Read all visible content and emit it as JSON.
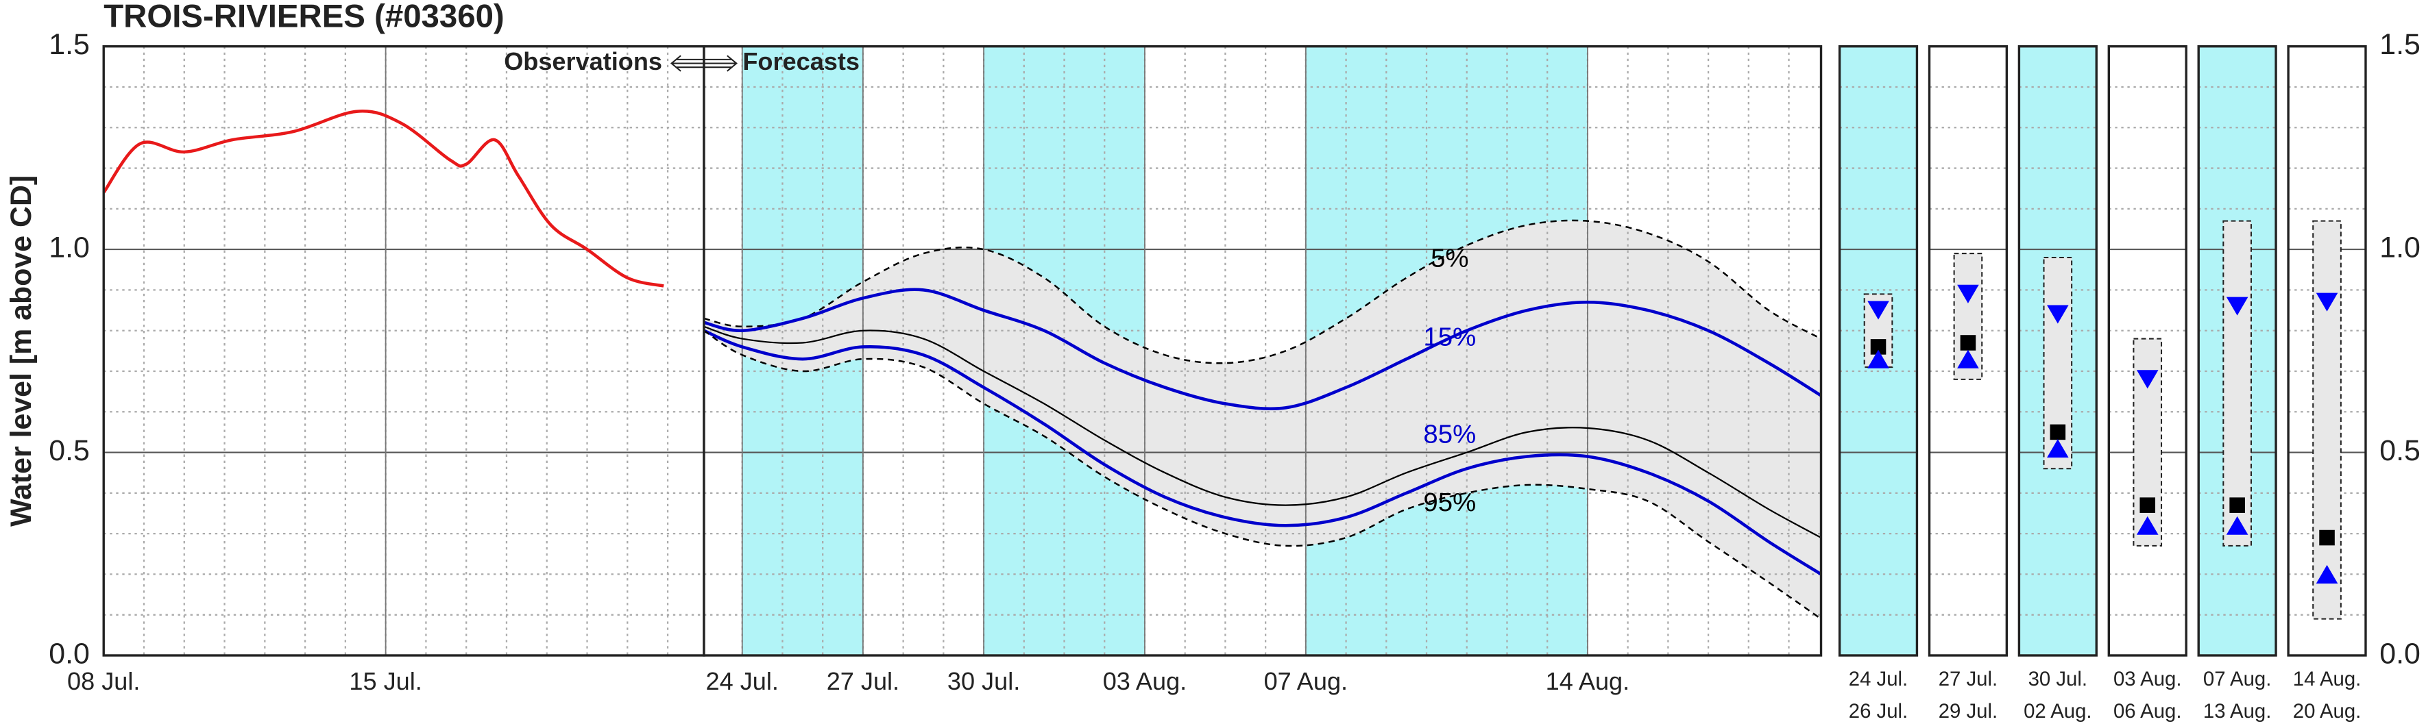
{
  "chart_data": [
    {
      "type": "line",
      "title": "TROIS-RIVIERES (#03360)",
      "y_label": "Water level [m above CD]",
      "x": [
        8,
        8.9,
        10,
        11.2,
        12.7,
        14.3,
        15.4,
        16.6,
        17,
        17.7,
        18.3,
        19.1,
        20,
        21,
        21.9
      ],
      "series": [
        {
          "color": "#e8191a",
          "values": [
            1.14,
            1.26,
            1.24,
            1.27,
            1.29,
            1.34,
            1.31,
            1.22,
            1.21,
            1.27,
            1.18,
            1.06,
            1.0,
            0.93,
            0.91
          ]
        }
      ],
      "xlim": [
        8,
        22.9
      ],
      "xticks": [
        {
          "value": 8,
          "label": "08 Jul."
        },
        {
          "value": 15,
          "label": "15 Jul."
        }
      ],
      "ylim": [
        0,
        1.5
      ],
      "yticks": [
        {
          "value": 0,
          "label": "0.0"
        },
        {
          "value": 0.5,
          "label": "0.5"
        },
        {
          "value": 1,
          "label": "1.0"
        },
        {
          "value": 1.5,
          "label": "1.5"
        }
      ],
      "grid": true
    },
    {
      "type": "band",
      "annotations": [
        "Observations",
        "Forecasts"
      ],
      "x": [
        23.05,
        24,
        25.5,
        27,
        28.5,
        30,
        31.5,
        33,
        34.5,
        36,
        37.5,
        39,
        40.5,
        42,
        43.5,
        45,
        46.5,
        48,
        49.5,
        50.8
      ],
      "series": [
        {
          "name": "5%",
          "color": "#000000",
          "dashed": true,
          "values": [
            0.83,
            0.81,
            0.83,
            0.92,
            0.99,
            1.0,
            0.93,
            0.81,
            0.74,
            0.72,
            0.75,
            0.83,
            0.93,
            1.01,
            1.06,
            1.07,
            1.04,
            0.97,
            0.85,
            0.78
          ]
        },
        {
          "name": "15%",
          "color": "#0000cc",
          "dashed": false,
          "values": [
            0.82,
            0.8,
            0.83,
            0.88,
            0.9,
            0.85,
            0.8,
            0.72,
            0.66,
            0.62,
            0.61,
            0.66,
            0.73,
            0.8,
            0.85,
            0.87,
            0.85,
            0.8,
            0.72,
            0.64
          ]
        },
        {
          "color": "#000000",
          "dashed": false,
          "values": [
            0.81,
            0.78,
            0.77,
            0.8,
            0.78,
            0.7,
            0.62,
            0.53,
            0.45,
            0.39,
            0.37,
            0.39,
            0.45,
            0.5,
            0.55,
            0.56,
            0.53,
            0.45,
            0.36,
            0.29
          ]
        },
        {
          "name": "85%",
          "color": "#0000cc",
          "dashed": false,
          "values": [
            0.8,
            0.76,
            0.73,
            0.76,
            0.74,
            0.66,
            0.57,
            0.47,
            0.39,
            0.34,
            0.32,
            0.34,
            0.4,
            0.46,
            0.49,
            0.49,
            0.45,
            0.38,
            0.28,
            0.2
          ]
        },
        {
          "name": "95%",
          "color": "#000000",
          "dashed": true,
          "values": [
            0.8,
            0.74,
            0.7,
            0.73,
            0.71,
            0.62,
            0.54,
            0.44,
            0.36,
            0.3,
            0.27,
            0.29,
            0.36,
            0.4,
            0.42,
            0.41,
            0.38,
            0.28,
            0.18,
            0.09
          ]
        }
      ],
      "fill_between": [
        0,
        4
      ],
      "fill_color": "#e8e8e8",
      "shaded_periods": [
        [
          24,
          27
        ],
        [
          30,
          34
        ],
        [
          38,
          45
        ]
      ],
      "band_color": "#b2f4f7",
      "xlim": [
        23.05,
        50.8
      ],
      "xticks": [
        {
          "value": 24,
          "label": "24 Jul."
        },
        {
          "value": 27,
          "label": "27 Jul."
        },
        {
          "value": 30,
          "label": "30 Jul."
        },
        {
          "value": 34,
          "label": "03 Aug."
        },
        {
          "value": 38,
          "label": "07 Aug."
        },
        {
          "value": 45,
          "label": "14 Aug."
        }
      ],
      "ylim": [
        0,
        1.5
      ],
      "yticks": [
        0,
        0.5,
        1,
        1.5
      ],
      "grid": true
    },
    {
      "type": "range",
      "categories": [
        [
          "24 Jul.",
          "26 Jul."
        ],
        [
          "27 Jul.",
          "29 Jul."
        ],
        [
          "30 Jul.",
          "02 Aug."
        ],
        [
          "03 Aug.",
          "06 Aug."
        ],
        [
          "07 Aug.",
          "13 Aug."
        ],
        [
          "14 Aug.",
          "20 Aug."
        ]
      ],
      "high": [
        0.89,
        0.99,
        0.98,
        0.78,
        1.07,
        1.07
      ],
      "low": [
        0.71,
        0.68,
        0.46,
        0.27,
        0.27,
        0.09
      ],
      "median": [
        0.76,
        0.77,
        0.55,
        0.37,
        0.37,
        0.29
      ],
      "p15": [
        0.85,
        0.89,
        0.84,
        0.68,
        0.86,
        0.87
      ],
      "p85": [
        0.73,
        0.73,
        0.51,
        0.32,
        0.32,
        0.2
      ],
      "box_color": "#e8e8e8",
      "median_color": "#000000",
      "marker_color": "#0000ff",
      "shaded": [
        true,
        false,
        true,
        false,
        true,
        false
      ],
      "band_color": "#b2f4f7",
      "ylim": [
        0,
        1.5
      ],
      "yticks": [
        {
          "value": 0,
          "label": "0.0"
        },
        {
          "value": 0.5,
          "label": "0.5"
        },
        {
          "value": 1,
          "label": "1.0"
        },
        {
          "value": 1.5,
          "label": "1.5"
        }
      ],
      "grid": true
    }
  ]
}
